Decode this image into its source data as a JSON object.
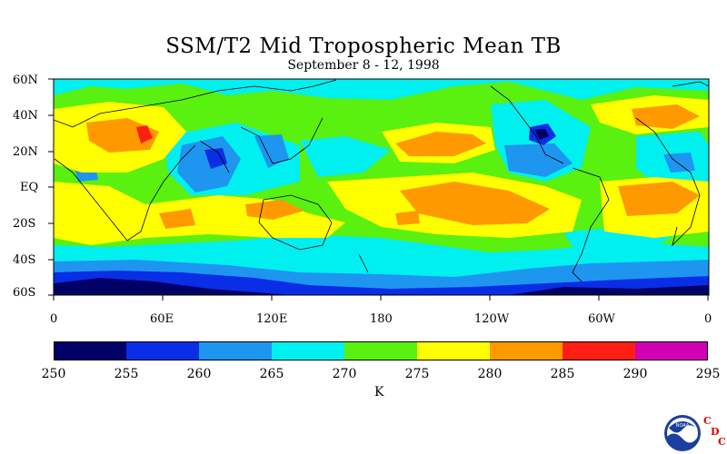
{
  "title": "SSM/T2 Mid Tropospheric Mean TB",
  "subtitle": "September 8 - 12, 1998",
  "y_axis_labels": [
    "60N",
    "40N",
    "20N",
    "EQ",
    "20S",
    "40S",
    "60S"
  ],
  "x_axis_labels": [
    "0",
    "60E",
    "120E",
    "180",
    "120W",
    "60W",
    "0"
  ],
  "colorbar": {
    "levels": [
      "250",
      "255",
      "260",
      "265",
      "270",
      "275",
      "280",
      "285",
      "290",
      "295"
    ],
    "colors": [
      "#000066",
      "#0a2de6",
      "#1e96f0",
      "#00f0f0",
      "#5af00f",
      "#ffff00",
      "#ff9900",
      "#ff1e14",
      "#d200b4"
    ],
    "unit": "K"
  },
  "logo": {
    "agency_text": "NOAA",
    "letters": [
      "C",
      "D",
      "C"
    ]
  },
  "map": {
    "lat_range": [
      -60,
      60
    ],
    "lon_range": [
      0,
      360
    ],
    "palette": {
      "c255": "#000066",
      "c260": "#0a2de6",
      "c265": "#1e96f0",
      "c270": "#00f0f0",
      "c275": "#5af00f",
      "c280": "#ffff00",
      "c285": "#ff9900",
      "c290": "#ff1e14",
      "c295": "#d200b4"
    }
  }
}
